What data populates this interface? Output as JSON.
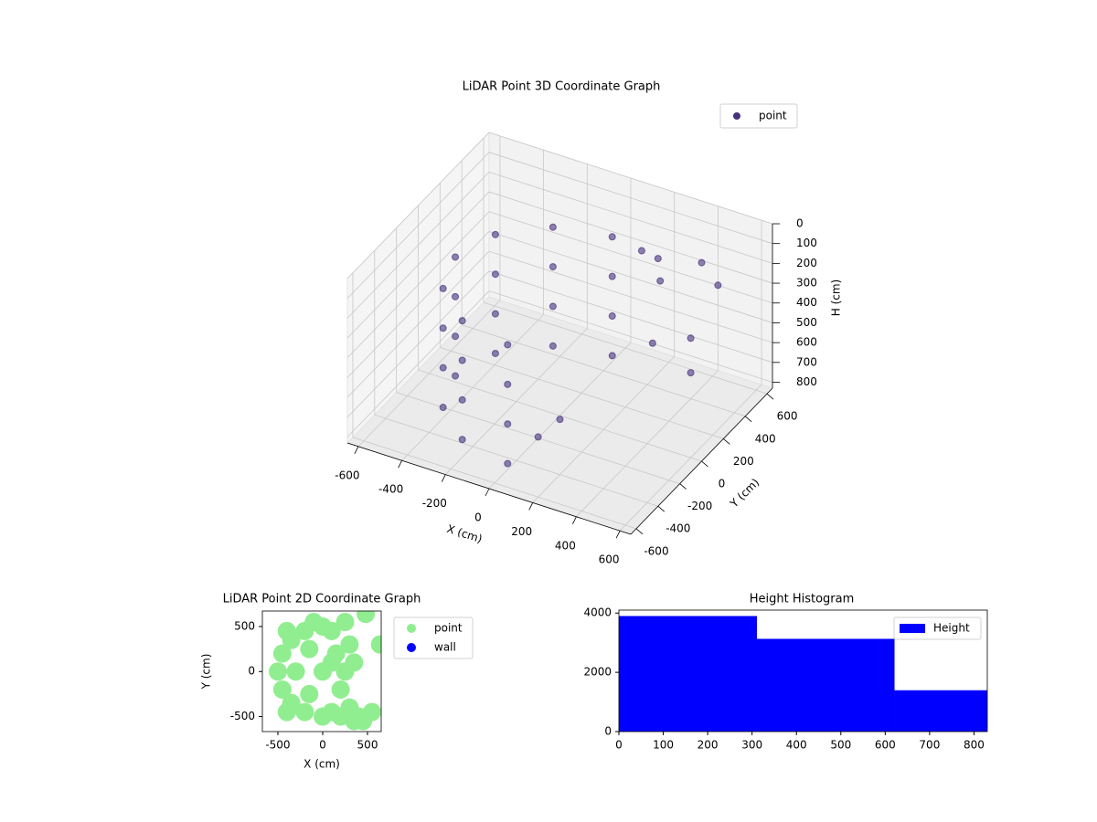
{
  "chart_data": [
    {
      "type": "scatter3d",
      "title": "LiDAR Point 3D Coordinate Graph",
      "xlabel": "X (cm)",
      "ylabel": "Y (cm)",
      "zlabel": "H (cm)",
      "xlim": [
        -650,
        650
      ],
      "ylim": [
        -650,
        650
      ],
      "zlim": [
        830,
        0
      ],
      "xticks": [
        -600,
        -400,
        -200,
        0,
        200,
        400,
        600
      ],
      "yticks": [
        -600,
        -400,
        -200,
        0,
        200,
        400,
        600
      ],
      "zticks": [
        0,
        100,
        200,
        300,
        400,
        500,
        600,
        700,
        800
      ],
      "grid": true,
      "legend": "upper right",
      "series": [
        {
          "name": "point",
          "color": "#46327e",
          "x": [
            0,
            -240,
            -416,
            -480,
            -416,
            -240,
            0,
            0,
            -240,
            -416,
            -480,
            -416,
            -240,
            0,
            0,
            -240,
            -416,
            -480,
            -416,
            -240,
            0,
            0,
            -240,
            -416,
            -480,
            -416,
            -240,
            0,
            150,
            200,
            250,
            400,
            500,
            450,
            500,
            300,
            100,
            50
          ],
          "y": [
            480,
            416,
            240,
            0,
            -240,
            -416,
            -480,
            480,
            416,
            240,
            0,
            -240,
            -416,
            -480,
            480,
            416,
            240,
            0,
            -240,
            -416,
            -480,
            480,
            416,
            240,
            0,
            -240,
            -416,
            -480,
            450,
            500,
            420,
            500,
            450,
            300,
            200,
            250,
            -200,
            -300
          ],
          "z": [
            200,
            200,
            200,
            200,
            200,
            200,
            200,
            400,
            400,
            400,
            400,
            400,
            400,
            400,
            600,
            600,
            600,
            600,
            600,
            600,
            600,
            800,
            800,
            800,
            800,
            800,
            800,
            800,
            200,
            250,
            300,
            200,
            250,
            450,
            550,
            500,
            700,
            750
          ]
        }
      ]
    },
    {
      "type": "scatter",
      "title": "LiDAR Point 2D Coordinate Graph",
      "xlabel": "X (cm)",
      "ylabel": "Y (cm)",
      "xlim": [
        -673,
        653
      ],
      "ylim": [
        -667,
        672
      ],
      "xticks": [
        -500,
        0,
        500
      ],
      "yticks": [
        -500,
        0,
        500
      ],
      "legend": "outside right",
      "series": [
        {
          "name": "point",
          "color": "#90ee90",
          "x": [
            -500,
            -450,
            -450,
            -350,
            -350,
            -200,
            -200,
            -300,
            -150,
            -150,
            0,
            0,
            0,
            100,
            100,
            200,
            250,
            150,
            200,
            300,
            350,
            400,
            300,
            350,
            250,
            450,
            -100,
            100,
            -400,
            -400,
            550,
            640,
            480
          ],
          "y": [
            0,
            -200,
            200,
            -350,
            350,
            -450,
            450,
            0,
            -250,
            250,
            -500,
            500,
            0,
            -450,
            450,
            -500,
            550,
            200,
            -200,
            -400,
            -550,
            -500,
            300,
            100,
            0,
            -550,
            550,
            100,
            -450,
            450,
            -450,
            300,
            640
          ]
        },
        {
          "name": "wall",
          "color": "#0000ff",
          "x": [],
          "y": []
        }
      ]
    },
    {
      "type": "histogram",
      "title": "Height Histogram",
      "bins": [
        0,
        311,
        621,
        830
      ],
      "xlim": [
        0,
        830
      ],
      "ylim": [
        0,
        4100
      ],
      "xticks": [
        0,
        100,
        200,
        300,
        400,
        500,
        600,
        700,
        800
      ],
      "yticks": [
        0,
        2000,
        4000
      ],
      "legend": "upper right",
      "series": [
        {
          "name": "Height",
          "color": "#0000ff",
          "values": [
            3900,
            3130,
            1395
          ]
        }
      ]
    }
  ]
}
